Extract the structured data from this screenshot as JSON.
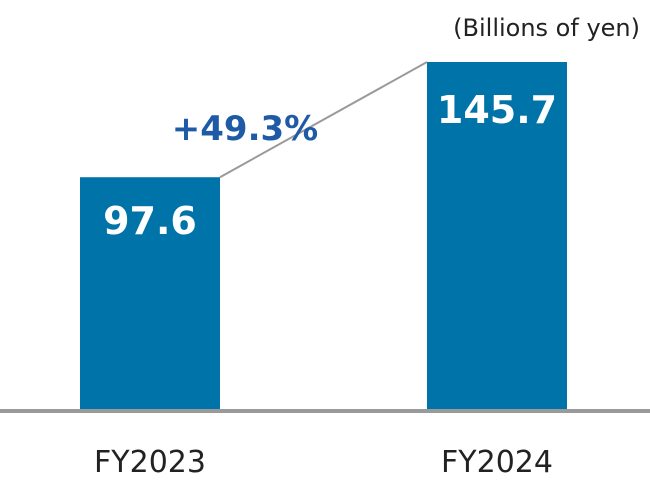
{
  "chart_data": {
    "type": "bar",
    "unit": "(Billions of yen)",
    "categories": [
      "FY2023",
      "FY2024"
    ],
    "values": [
      97.6,
      145.7
    ],
    "value_labels": [
      "97.6",
      "145.7"
    ],
    "ylim": [
      0,
      145.7
    ],
    "grid": false,
    "legend": "none",
    "annotation": {
      "text": "+49.3%",
      "type": "growth-connector"
    }
  },
  "colors": {
    "bar": "#0073a8",
    "axis": "#9a9a9a",
    "connector": "#9a9a9a",
    "growth": "#1f5aa6",
    "text": "#222222"
  }
}
